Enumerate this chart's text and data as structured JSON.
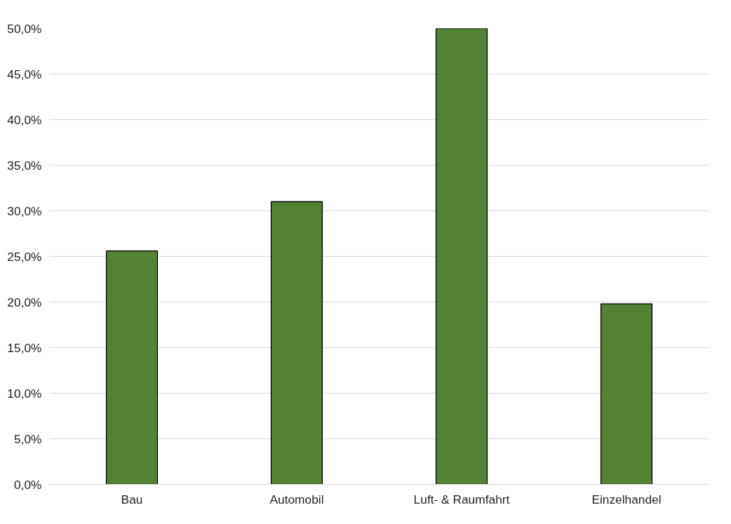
{
  "chart_data": {
    "type": "bar",
    "categories": [
      "Bau",
      "Automobil",
      "Luft- & Raumfahrt",
      "Einzelhandel"
    ],
    "values": [
      25.6,
      31.0,
      50.0,
      19.8
    ],
    "color": "#548235",
    "ylim": [
      0,
      50
    ],
    "yticks": [
      {
        "value": 0,
        "label": "0,0%"
      },
      {
        "value": 5,
        "label": "5,0%"
      },
      {
        "value": 10,
        "label": "10,0%"
      },
      {
        "value": 15,
        "label": "15,0%"
      },
      {
        "value": 20,
        "label": "20,0%"
      },
      {
        "value": 25,
        "label": "25,0%"
      },
      {
        "value": 30,
        "label": "30,0%"
      },
      {
        "value": 35,
        "label": "35,0%"
      },
      {
        "value": 40,
        "label": "40,0%"
      },
      {
        "value": 45,
        "label": "45,0%"
      },
      {
        "value": 50,
        "label": "50,0%"
      }
    ],
    "grid": "y"
  }
}
